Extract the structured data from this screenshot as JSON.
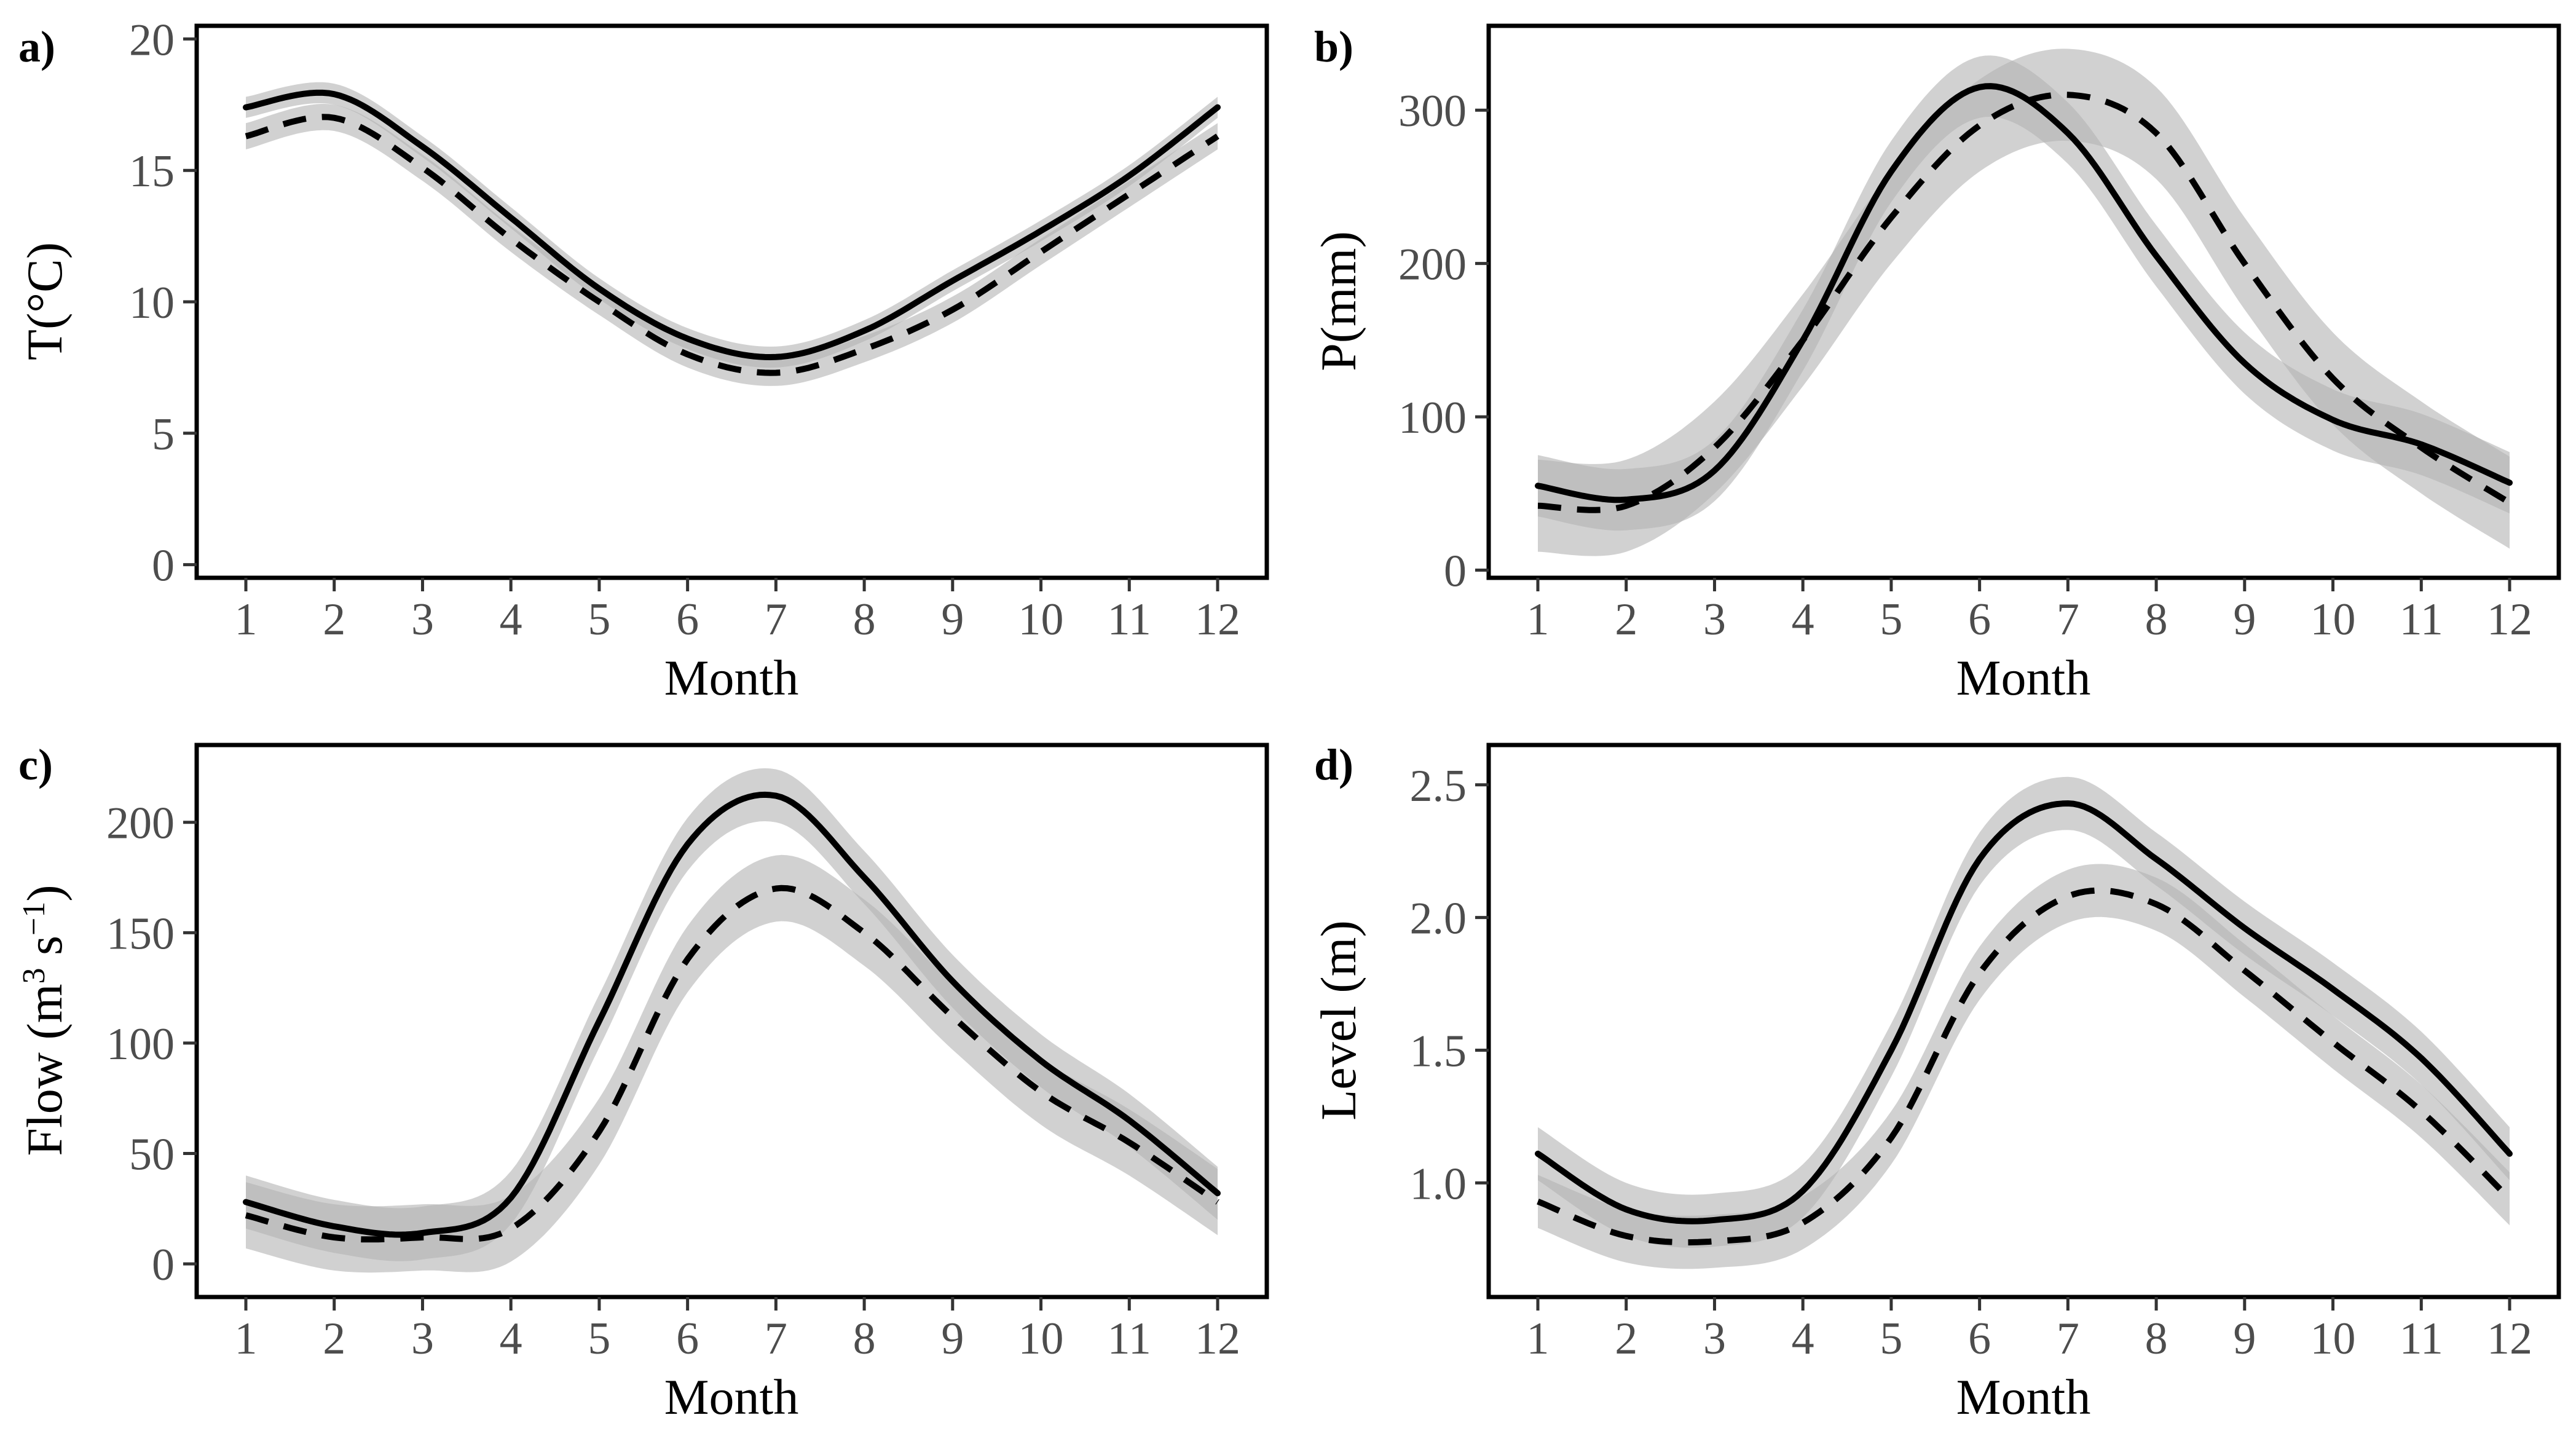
{
  "chart_data": [
    {
      "type": "line",
      "panel_label": "a)",
      "xlabel": "Month",
      "ylabel": "T(°C)",
      "x": [
        1,
        2,
        3,
        4,
        5,
        6,
        7,
        8,
        9,
        10,
        11,
        12
      ],
      "xticks": [
        "1",
        "2",
        "3",
        "4",
        "5",
        "6",
        "7",
        "8",
        "9",
        "10",
        "11",
        "12"
      ],
      "ylim": [
        -0.5,
        20.5
      ],
      "yticks": [
        0,
        5,
        10,
        15,
        20
      ],
      "ytick_labels": [
        "0",
        "5",
        "10",
        "15",
        "20"
      ],
      "series": [
        {
          "style": "solid",
          "values": [
            17.4,
            17.9,
            15.9,
            13.2,
            10.5,
            8.6,
            7.9,
            8.9,
            10.8,
            12.7,
            14.8,
            17.4
          ],
          "band": 0.4
        },
        {
          "style": "dashed",
          "values": [
            16.3,
            17.0,
            15.1,
            12.4,
            10.0,
            8.0,
            7.3,
            8.2,
            9.7,
            11.9,
            14.1,
            16.3
          ],
          "band": 0.5
        }
      ]
    },
    {
      "type": "line",
      "panel_label": "b)",
      "xlabel": "Month",
      "ylabel": "P(mm)",
      "x": [
        1,
        2,
        3,
        4,
        5,
        6,
        7,
        8,
        9,
        10,
        11,
        12
      ],
      "xticks": [
        "1",
        "2",
        "3",
        "4",
        "5",
        "6",
        "7",
        "8",
        "9",
        "10",
        "11",
        "12"
      ],
      "ylim": [
        -5,
        355
      ],
      "yticks": [
        0,
        100,
        200,
        300
      ],
      "ytick_labels": [
        "0",
        "100",
        "200",
        "300"
      ],
      "series": [
        {
          "style": "solid",
          "values": [
            55,
            46,
            65,
            150,
            260,
            315,
            285,
            205,
            135,
            98,
            82,
            57
          ],
          "band": 20
        },
        {
          "style": "dashed",
          "values": [
            42,
            42,
            80,
            150,
            230,
            290,
            310,
            285,
            200,
            125,
            80,
            44
          ],
          "band": 30
        }
      ]
    },
    {
      "type": "line",
      "panel_label": "c)",
      "xlabel": "Month",
      "ylabel_main": "Flow (m",
      "ylabel_sup1": "3",
      "ylabel_mid": " s",
      "ylabel_sup2": "−1",
      "ylabel_end": ")",
      "x": [
        1,
        2,
        3,
        4,
        5,
        6,
        7,
        8,
        9,
        10,
        11,
        12
      ],
      "xticks": [
        "1",
        "2",
        "3",
        "4",
        "5",
        "6",
        "7",
        "8",
        "9",
        "10",
        "11",
        "12"
      ],
      "ylim": [
        -15,
        235
      ],
      "yticks": [
        0,
        50,
        100,
        150,
        200
      ],
      "ytick_labels": [
        "0",
        "50",
        "100",
        "150",
        "200"
      ],
      "series": [
        {
          "style": "solid",
          "values": [
            28,
            17,
            14,
            30,
            110,
            190,
            212,
            175,
            128,
            92,
            65,
            32
          ],
          "band": 12
        },
        {
          "style": "dashed",
          "values": [
            22,
            12,
            12,
            16,
            60,
            138,
            170,
            150,
            112,
            78,
            55,
            28
          ],
          "band": 15
        }
      ]
    },
    {
      "type": "line",
      "panel_label": "d)",
      "xlabel": "Month",
      "ylabel": "Level (m)",
      "x": [
        1,
        2,
        3,
        4,
        5,
        6,
        7,
        8,
        9,
        10,
        11,
        12
      ],
      "xticks": [
        "1",
        "2",
        "3",
        "4",
        "5",
        "6",
        "7",
        "8",
        "9",
        "10",
        "11",
        "12"
      ],
      "ylim": [
        0.57,
        2.65
      ],
      "yticks": [
        1.0,
        1.5,
        2.0,
        2.5
      ],
      "ytick_labels": [
        "1.0",
        "1.5",
        "2.0",
        "2.5"
      ],
      "series": [
        {
          "style": "solid",
          "values": [
            1.11,
            0.9,
            0.86,
            0.97,
            1.5,
            2.22,
            2.43,
            2.22,
            1.96,
            1.73,
            1.47,
            1.11
          ],
          "band": 0.1
        },
        {
          "style": "dashed",
          "values": [
            0.93,
            0.8,
            0.78,
            0.85,
            1.17,
            1.79,
            2.08,
            2.05,
            1.8,
            1.53,
            1.27,
            0.94
          ],
          "band": 0.1
        }
      ]
    }
  ]
}
